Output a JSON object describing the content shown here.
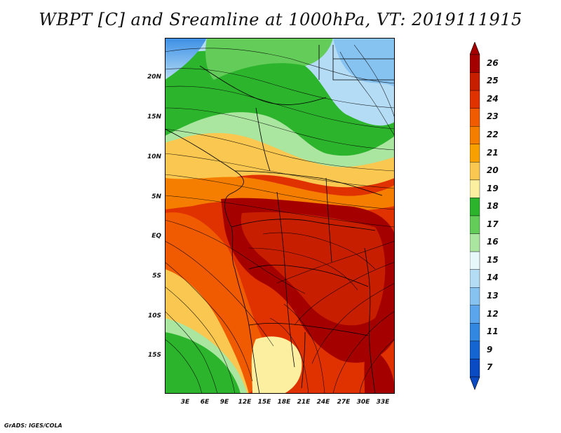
{
  "title": "WBPT [C] and Sreamline at 1000hPa, VT: 2019111915",
  "credit": "GrADS: IGES/COLA",
  "lat_labels": [
    "20N",
    "15N",
    "10N",
    "5N",
    "EQ",
    "5S",
    "10S",
    "15S"
  ],
  "lon_labels": [
    "3E",
    "6E",
    "9E",
    "12E",
    "15E",
    "18E",
    "21E",
    "24E",
    "27E",
    "30E",
    "33E"
  ],
  "colorbar": {
    "labels": [
      "26",
      "25",
      "24",
      "23",
      "22",
      "21",
      "20",
      "19",
      "18",
      "17",
      "16",
      "15",
      "14",
      "13",
      "12",
      "11",
      "9",
      "7"
    ],
    "colors": [
      "#a50000",
      "#c81e00",
      "#e03200",
      "#f05a00",
      "#f57d00",
      "#f8a000",
      "#fac850",
      "#fcf0a0",
      "#2db42d",
      "#64cd5a",
      "#aae6a0",
      "#e6f8fa",
      "#b4dcf5",
      "#87c3f0",
      "#5aa5eb",
      "#3287e1",
      "#1464d2",
      "#0a4bc3"
    ]
  }
}
